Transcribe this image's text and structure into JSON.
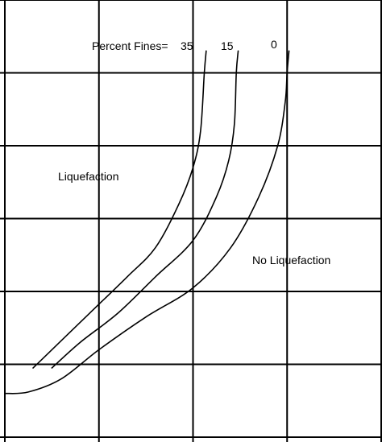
{
  "chart_data": {
    "type": "line",
    "grid": true,
    "xlim": [
      0,
      4
    ],
    "ylim": [
      0,
      6
    ],
    "series": [
      {
        "name": "35",
        "points": [
          [
            0.3,
            0.95
          ],
          [
            0.5,
            1.2
          ],
          [
            0.9,
            1.7
          ],
          [
            1.3,
            2.2
          ],
          [
            1.6,
            2.6
          ],
          [
            1.85,
            3.2
          ],
          [
            2.0,
            3.7
          ],
          [
            2.08,
            4.2
          ],
          [
            2.12,
            5.0
          ],
          [
            2.14,
            5.3
          ]
        ]
      },
      {
        "name": "15",
        "points": [
          [
            0.5,
            0.95
          ],
          [
            0.8,
            1.3
          ],
          [
            1.2,
            1.7
          ],
          [
            1.6,
            2.2
          ],
          [
            2.0,
            2.7
          ],
          [
            2.25,
            3.3
          ],
          [
            2.38,
            3.8
          ],
          [
            2.44,
            4.3
          ],
          [
            2.46,
            5.0
          ],
          [
            2.48,
            5.3
          ]
        ]
      },
      {
        "name": "0",
        "points": [
          [
            0.0,
            0.6
          ],
          [
            0.25,
            0.62
          ],
          [
            0.6,
            0.8
          ],
          [
            1.0,
            1.2
          ],
          [
            1.5,
            1.65
          ],
          [
            2.0,
            2.05
          ],
          [
            2.4,
            2.6
          ],
          [
            2.7,
            3.3
          ],
          [
            2.9,
            4.0
          ],
          [
            2.98,
            4.6
          ],
          [
            3.0,
            5.0
          ],
          [
            3.02,
            5.3
          ]
        ]
      }
    ],
    "annotations": {
      "series_label_prefix": "Percent Fines=",
      "series_labels": [
        "35",
        "15",
        "0"
      ],
      "region_liquefaction": "Liquefaction",
      "region_no_liquefaction": "No Liquefaction"
    }
  }
}
